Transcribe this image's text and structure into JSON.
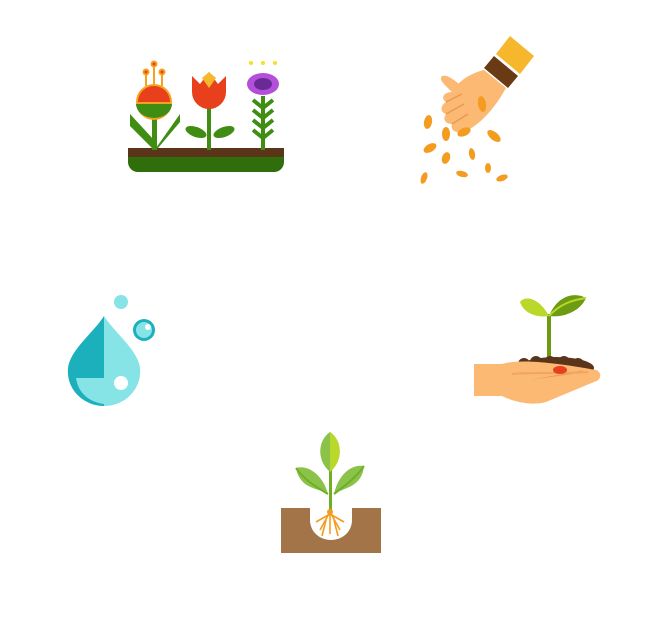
{
  "icons": [
    {
      "name": "flower-bed-icon",
      "depicts": "flower-bed"
    },
    {
      "name": "hand-sowing-seeds-icon",
      "depicts": "hand-sowing-seeds"
    },
    {
      "name": "water-drop-icon",
      "depicts": "water-drop"
    },
    {
      "name": "hand-holding-sprout-icon",
      "depicts": "hand-holding-sprout"
    },
    {
      "name": "plant-roots-in-soil-icon",
      "depicts": "plant-roots-in-soil"
    }
  ],
  "colors": {
    "background": "#ffffff",
    "soil_dark": "#5a3519",
    "grass_green": "#2f7d0c",
    "leaf_green": "#8bc34a",
    "flower_red": "#e8401c",
    "flower_orange": "#f6a21e",
    "flower_purple": "#b34fd9",
    "skin": "#fbb974",
    "seed": "#f39c1f",
    "cuff_yellow": "#f6b72c",
    "sleeve_brown": "#6a3a14",
    "water_light": "#86e3e6",
    "water_dark": "#1cb0bd",
    "soil_brown": "#a37448"
  }
}
